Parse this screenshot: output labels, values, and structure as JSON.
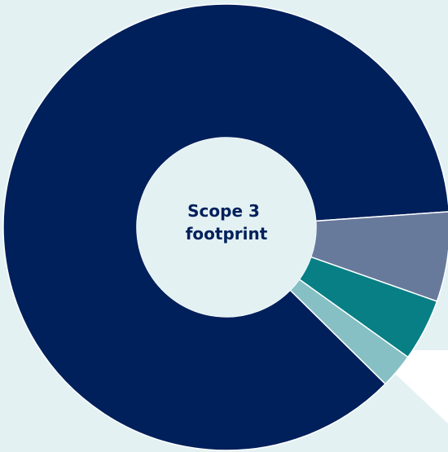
{
  "colors": {
    "background": "#e3f1f3",
    "background_cutout": "#ffffff",
    "slice_colors": [
      "#00205b",
      "#687a9c",
      "#077f85",
      "#86c0c4"
    ]
  },
  "chart_data": {
    "type": "pie",
    "style": "donut",
    "center_label_lines": [
      "Scope 3",
      "footprint"
    ],
    "slices": [
      {
        "value": 86.5,
        "color": "#00205b"
      },
      {
        "value": 6.5,
        "color": "#687a9c"
      },
      {
        "value": 4.5,
        "color": "#077f85"
      },
      {
        "value": 2.5,
        "color": "#86c0c4"
      }
    ]
  }
}
